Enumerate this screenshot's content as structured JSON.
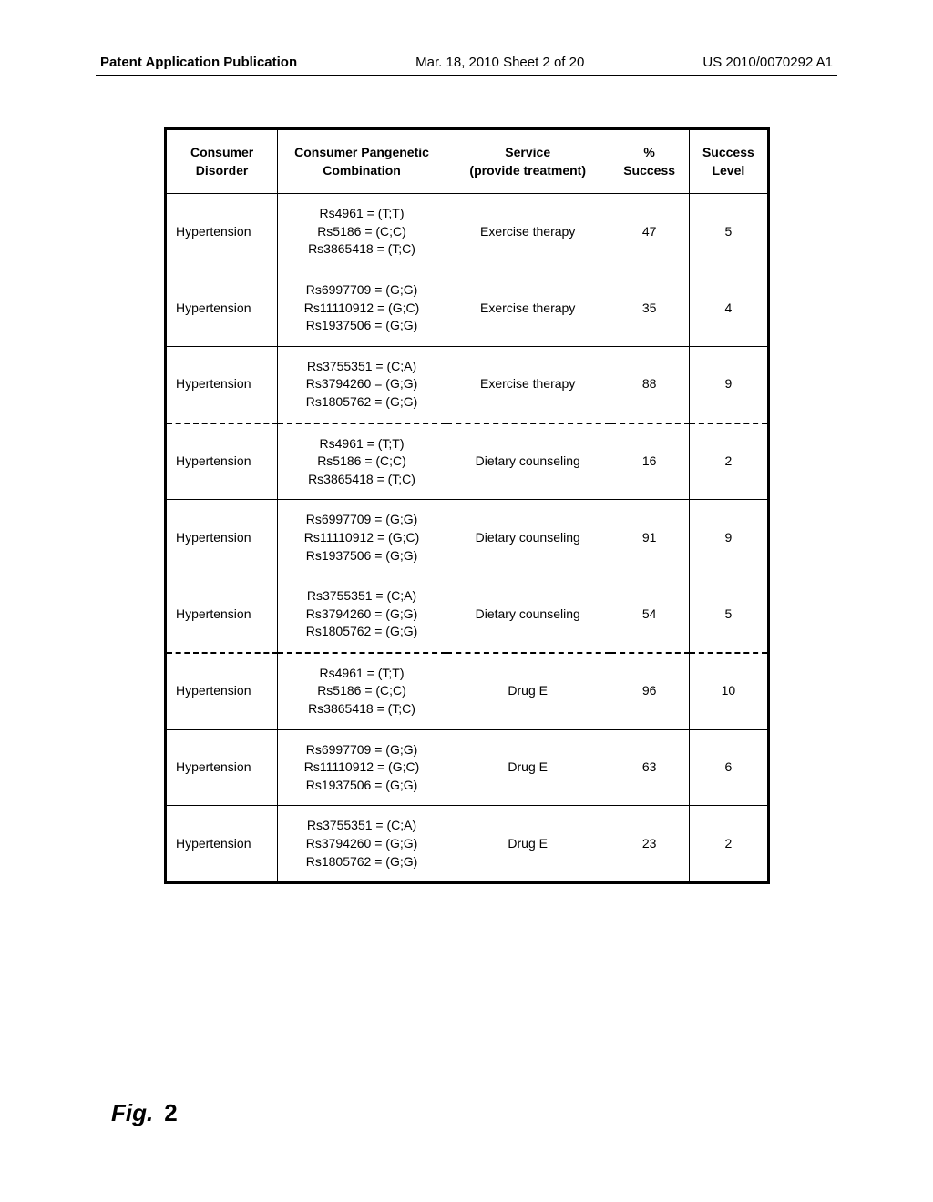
{
  "header": {
    "left": "Patent Application Publication",
    "center": "Mar. 18, 2010  Sheet 2 of 20",
    "right": "US 2010/0070292 A1"
  },
  "table": {
    "columns": [
      "Consumer Disorder",
      "Consumer Pangenetic Combination",
      "Service\n(provide treatment)",
      "%\nSuccess",
      "Success Level"
    ],
    "rows": [
      {
        "disorder": "Hypertension",
        "combo": "Rs4961 = (T;T)\nRs5186 = (C;C)\nRs3865418 = (T;C)",
        "service": "Exercise therapy",
        "success_pct": "47",
        "success_level": "5",
        "dashed": false
      },
      {
        "disorder": "Hypertension",
        "combo": "Rs6997709 = (G;G)\nRs11110912 = (G;C)\nRs1937506 = (G;G)",
        "service": "Exercise therapy",
        "success_pct": "35",
        "success_level": "4",
        "dashed": false
      },
      {
        "disorder": "Hypertension",
        "combo": "Rs3755351 = (C;A)\nRs3794260 = (G;G)\nRs1805762 = (G;G)",
        "service": "Exercise therapy",
        "success_pct": "88",
        "success_level": "9",
        "dashed": true
      },
      {
        "disorder": "Hypertension",
        "combo": "Rs4961 = (T;T)\nRs5186 = (C;C)\nRs3865418 = (T;C)",
        "service": "Dietary counseling",
        "success_pct": "16",
        "success_level": "2",
        "dashed": false
      },
      {
        "disorder": "Hypertension",
        "combo": "Rs6997709 = (G;G)\nRs11110912 = (G;C)\nRs1937506 = (G;G)",
        "service": "Dietary counseling",
        "success_pct": "91",
        "success_level": "9",
        "dashed": false
      },
      {
        "disorder": "Hypertension",
        "combo": "Rs3755351 = (C;A)\nRs3794260 = (G;G)\nRs1805762 = (G;G)",
        "service": "Dietary counseling",
        "success_pct": "54",
        "success_level": "5",
        "dashed": true
      },
      {
        "disorder": "Hypertension",
        "combo": "Rs4961 = (T;T)\nRs5186 = (C;C)\nRs3865418 = (T;C)",
        "service": "Drug E",
        "success_pct": "96",
        "success_level": "10",
        "dashed": false
      },
      {
        "disorder": "Hypertension",
        "combo": "Rs6997709 = (G;G)\nRs11110912 = (G;C)\nRs1937506 = (G;G)",
        "service": "Drug E",
        "success_pct": "63",
        "success_level": "6",
        "dashed": false
      },
      {
        "disorder": "Hypertension",
        "combo": "Rs3755351 = (C;A)\nRs3794260 = (G;G)\nRs1805762 = (G;G)",
        "service": "Drug E",
        "success_pct": "23",
        "success_level": "2",
        "dashed": false
      }
    ]
  },
  "figure": {
    "prefix": "Fig.",
    "number": "2"
  }
}
